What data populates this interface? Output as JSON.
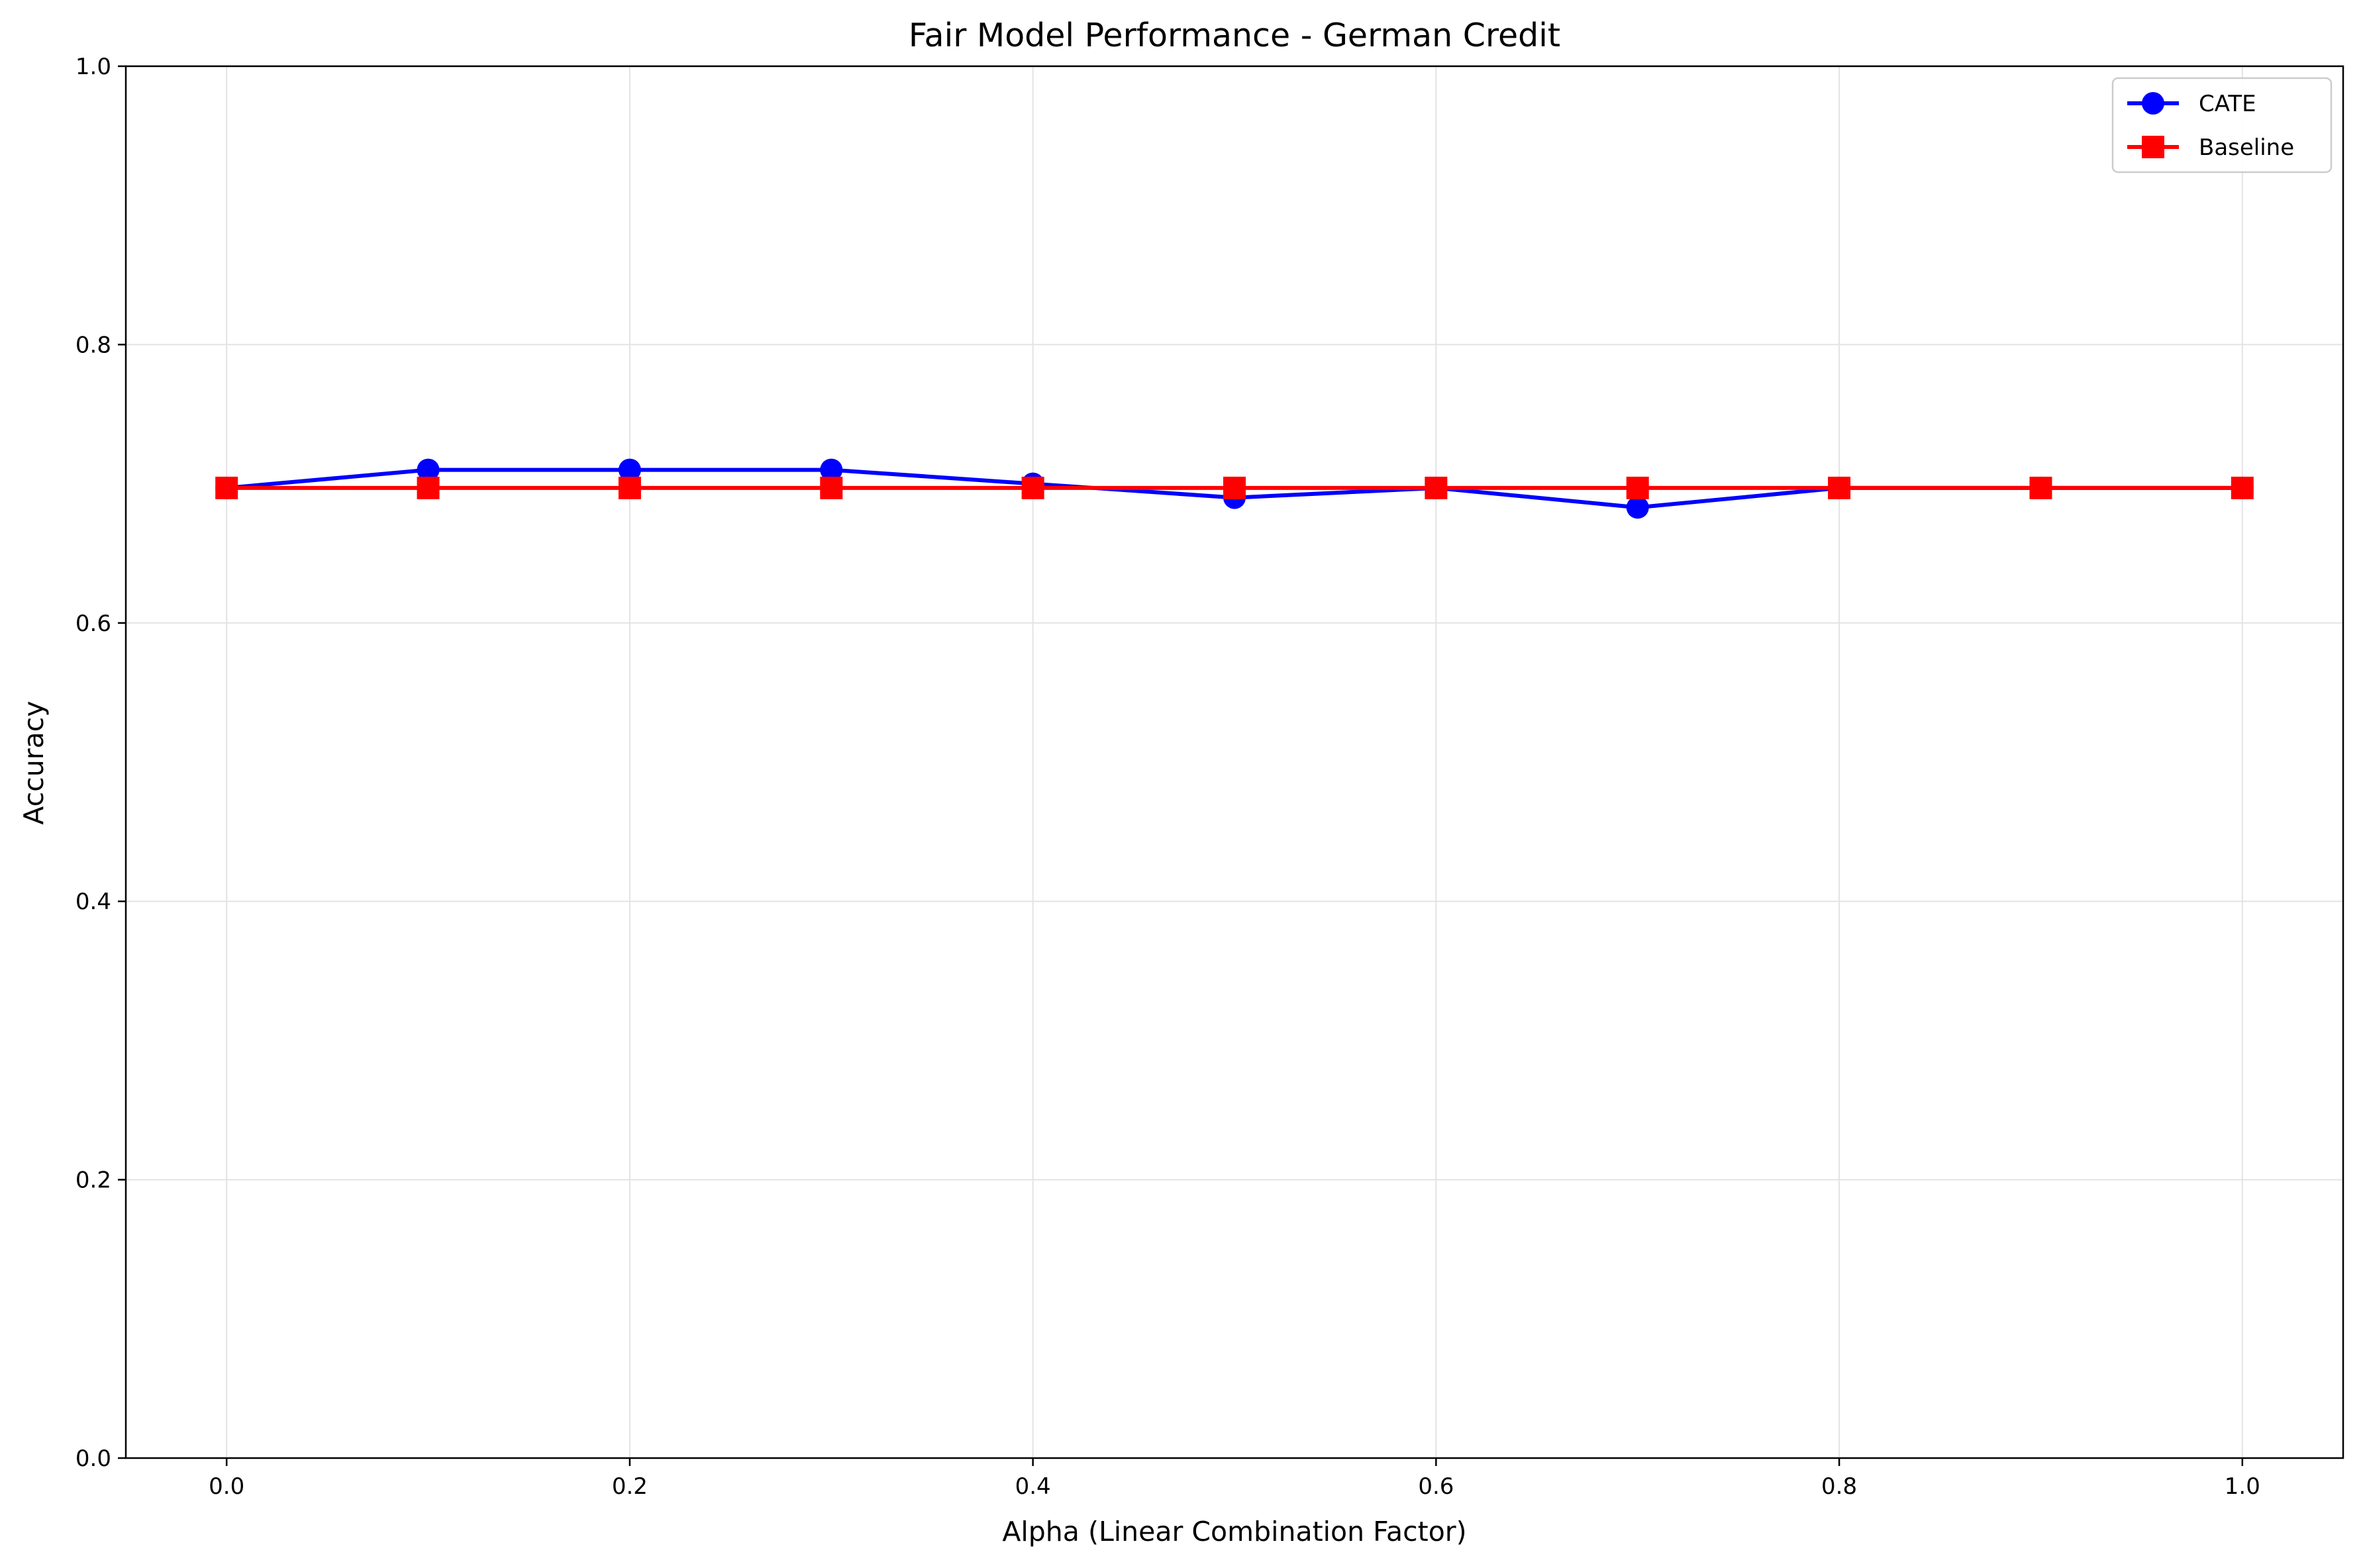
{
  "chart_data": {
    "type": "line",
    "title": "Fair Model Performance - German Credit",
    "xlabel": "Alpha (Linear Combination Factor)",
    "ylabel": "Accuracy",
    "xlim": [
      -0.05,
      1.05
    ],
    "ylim": [
      0.0,
      1.0
    ],
    "x_ticks": [
      "0.0",
      "0.2",
      "0.4",
      "0.6",
      "0.8",
      "1.0"
    ],
    "y_ticks": [
      "0.0",
      "0.2",
      "0.4",
      "0.6",
      "0.8",
      "1.0"
    ],
    "x_tick_values": [
      0.0,
      0.2,
      0.4,
      0.6,
      0.8,
      1.0
    ],
    "y_tick_values": [
      0.0,
      0.2,
      0.4,
      0.6,
      0.8,
      1.0
    ],
    "grid": true,
    "legend_position": "top-right",
    "x": [
      0.0,
      0.1,
      0.2,
      0.3,
      0.4,
      0.5,
      0.6,
      0.7,
      0.8,
      0.9,
      1.0
    ],
    "series": [
      {
        "name": "CATE",
        "color": "#0000ff",
        "marker": "circle",
        "values": [
          0.697,
          0.71,
          0.71,
          0.71,
          0.7,
          0.69,
          0.697,
          0.683,
          0.697,
          0.697,
          0.697
        ]
      },
      {
        "name": "Baseline",
        "color": "#ff0000",
        "marker": "square",
        "values": [
          0.697,
          0.697,
          0.697,
          0.697,
          0.697,
          0.697,
          0.697,
          0.697,
          0.697,
          0.697,
          0.697
        ]
      }
    ]
  }
}
